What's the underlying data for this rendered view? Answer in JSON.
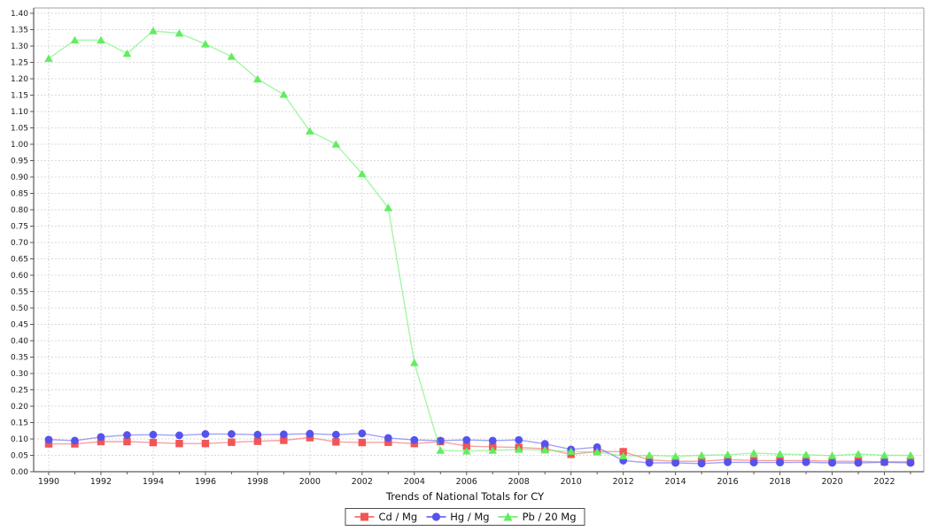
{
  "chart_data": {
    "type": "line",
    "title": "",
    "xlabel": "Trends of National Totals for CY",
    "ylabel": "",
    "x": [
      1990,
      1991,
      1992,
      1993,
      1994,
      1995,
      1996,
      1997,
      1998,
      1999,
      2000,
      2001,
      2002,
      2003,
      2004,
      2005,
      2006,
      2007,
      2008,
      2009,
      2010,
      2011,
      2012,
      2013,
      2014,
      2015,
      2016,
      2017,
      2018,
      2019,
      2020,
      2021,
      2022,
      2023
    ],
    "x_tick_labels": [
      "1990",
      "1992",
      "1994",
      "1996",
      "1998",
      "2000",
      "2002",
      "2004",
      "2006",
      "2008",
      "2010",
      "2012",
      "2014",
      "2016",
      "2018",
      "2020",
      "2022"
    ],
    "x_labeled_years": [
      1990,
      1992,
      1994,
      1996,
      1998,
      2000,
      2002,
      2004,
      2006,
      2008,
      2010,
      2012,
      2014,
      2016,
      2018,
      2020,
      2022
    ],
    "y_tick_labels": [
      "0.00",
      "0.05",
      "0.10",
      "0.15",
      "0.20",
      "0.25",
      "0.30",
      "0.35",
      "0.40",
      "0.45",
      "0.50",
      "0.55",
      "0.60",
      "0.65",
      "0.70",
      "0.75",
      "0.80",
      "0.85",
      "0.90",
      "0.95",
      "1.00",
      "1.05",
      "1.10",
      "1.15",
      "1.20",
      "1.25",
      "1.30",
      "1.35",
      "1.40"
    ],
    "y_tick_values": [
      0,
      0.05,
      0.1,
      0.15,
      0.2,
      0.25,
      0.3,
      0.35,
      0.4,
      0.45,
      0.5,
      0.55,
      0.6,
      0.65,
      0.7,
      0.75,
      0.8,
      0.85,
      0.9,
      0.95,
      1.0,
      1.05,
      1.1,
      1.15,
      1.2,
      1.25,
      1.3,
      1.35,
      1.4
    ],
    "ylim": [
      0,
      1.4162
    ],
    "xlim": [
      1989.42,
      1990.51
    ],
    "grid": "dashed both axes",
    "legend_position": "bottom-center",
    "series": [
      {
        "key": "cd",
        "name": "Cd / Mg",
        "color": "#f25555",
        "marker": "square",
        "values": [
          0.085,
          0.085,
          0.092,
          0.092,
          0.089,
          0.086,
          0.086,
          0.09,
          0.093,
          0.096,
          0.104,
          0.091,
          0.089,
          0.09,
          0.086,
          0.092,
          0.078,
          0.076,
          0.074,
          0.07,
          0.053,
          0.062,
          0.061,
          0.036,
          0.032,
          0.032,
          0.037,
          0.034,
          0.034,
          0.034,
          0.032,
          0.032,
          0.03,
          0.031
        ]
      },
      {
        "key": "hg",
        "name": "Hg / Mg",
        "color": "#5553ee",
        "marker": "circle",
        "values": [
          0.098,
          0.095,
          0.106,
          0.112,
          0.113,
          0.111,
          0.115,
          0.115,
          0.113,
          0.114,
          0.116,
          0.113,
          0.117,
          0.103,
          0.097,
          0.095,
          0.097,
          0.095,
          0.097,
          0.085,
          0.068,
          0.075,
          0.034,
          0.027,
          0.027,
          0.025,
          0.029,
          0.028,
          0.028,
          0.029,
          0.027,
          0.027,
          0.029,
          0.027
        ]
      },
      {
        "key": "pb",
        "name": "Pb / 20 Mg",
        "color": "#5fee5f",
        "marker": "triangle",
        "values": [
          1.262,
          1.318,
          1.318,
          1.277,
          1.346,
          1.339,
          1.306,
          1.268,
          1.199,
          1.152,
          1.04,
          1.0,
          0.91,
          0.806,
          0.333,
          0.065,
          0.063,
          0.065,
          0.068,
          0.066,
          0.062,
          0.06,
          0.048,
          0.05,
          0.047,
          0.05,
          0.052,
          0.057,
          0.054,
          0.052,
          0.049,
          0.054,
          0.05,
          0.05
        ]
      }
    ]
  },
  "style_colors": {
    "grid": "#d9d9d9",
    "box_border": "#b3b3b3",
    "axis": "#5a5a5a",
    "tick_text": "#1a1a1a",
    "line_opacity": 0.55
  }
}
